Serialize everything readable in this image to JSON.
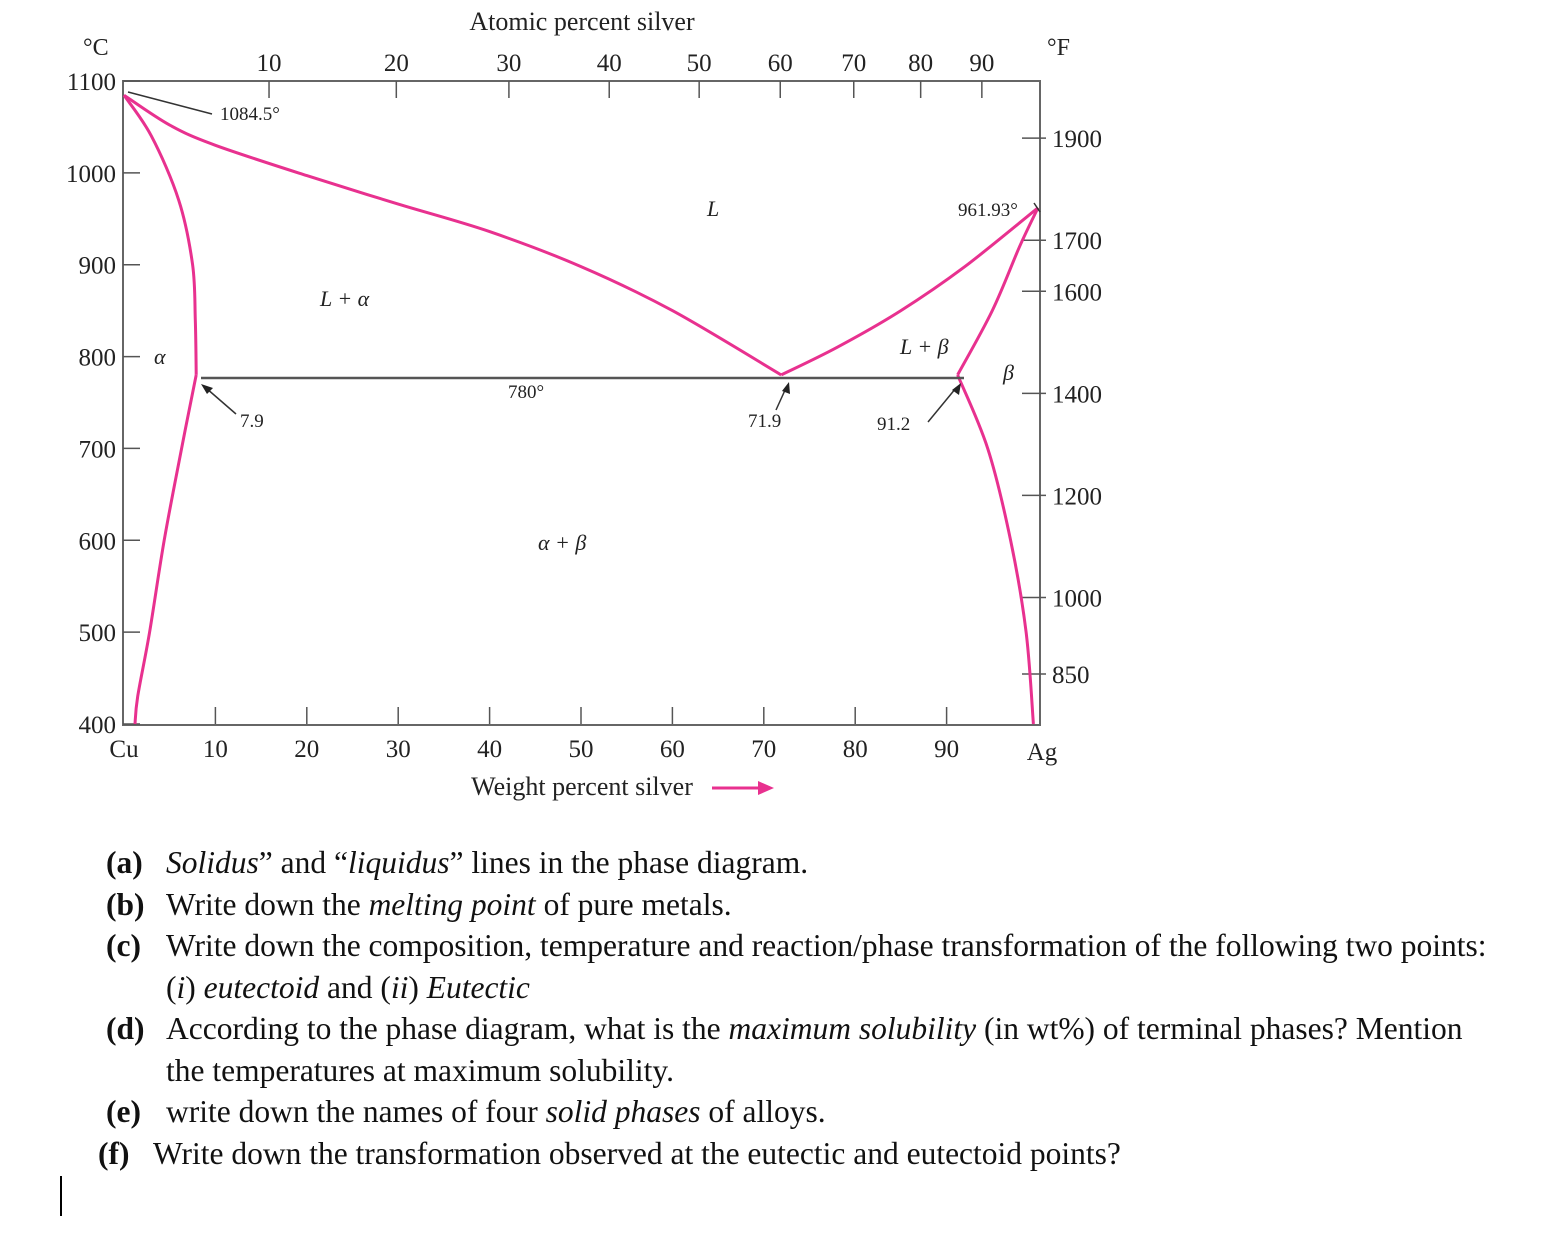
{
  "diagram": {
    "top_axis_title": "Atomic percent silver",
    "bottom_axis_title": "Weight percent silver",
    "left_unit": "°C",
    "right_unit": "°F",
    "left_ticks": [
      "1100",
      "1000",
      "900",
      "800",
      "700",
      "600",
      "500",
      "400"
    ],
    "right_ticks": [
      "1900",
      "1700",
      "1600",
      "1400",
      "1200",
      "1000",
      "850"
    ],
    "top_ticks": [
      "10",
      "20",
      "30",
      "40",
      "50",
      "60",
      "70",
      "80",
      "90"
    ],
    "bottom_ticks": [
      "10",
      "20",
      "30",
      "40",
      "50",
      "60",
      "70",
      "80",
      "90"
    ],
    "bottom_left_label": "Cu",
    "bottom_right_label": "Ag",
    "annotations": {
      "cu_melting": "1084.5°",
      "ag_melting": "961.93°",
      "eutectic_temp": "780°",
      "alpha_limit": "7.9",
      "eutectic_comp": "71.9",
      "beta_limit": "91.2"
    },
    "phases": {
      "liquid": "L",
      "l_alpha": "L + α",
      "l_beta": "L + β",
      "alpha": "α",
      "beta": "β",
      "alpha_beta": "α + β"
    },
    "colors": {
      "phase_boundary": "#e8318f",
      "frame": "#555555",
      "arrow": "#e8318f"
    }
  },
  "chart_data": {
    "type": "phase_diagram",
    "system": "Cu-Ag",
    "x_unit": "Weight percent silver",
    "y_unit": "°C",
    "xlim": [
      0,
      100
    ],
    "ylim": [
      400,
      1100
    ],
    "curves": {
      "liquidus_alpha": [
        [
          0,
          1084.5
        ],
        [
          5,
          1052
        ],
        [
          10,
          1030
        ],
        [
          20,
          997
        ],
        [
          30,
          966
        ],
        [
          40,
          936
        ],
        [
          50,
          898
        ],
        [
          60,
          850
        ],
        [
          71.9,
          780
        ]
      ],
      "liquidus_beta": [
        [
          71.9,
          780
        ],
        [
          78,
          810
        ],
        [
          85,
          850
        ],
        [
          92,
          898
        ],
        [
          100,
          961.93
        ]
      ],
      "solidus_alpha": [
        [
          0,
          1084.5
        ],
        [
          3,
          1040
        ],
        [
          6,
          970
        ],
        [
          7.5,
          900
        ],
        [
          7.8,
          840
        ],
        [
          7.9,
          780
        ]
      ],
      "solvus_alpha": [
        [
          7.9,
          780
        ],
        [
          6.3,
          700
        ],
        [
          4.4,
          600
        ],
        [
          2.8,
          500
        ],
        [
          1.5,
          430
        ],
        [
          1.2,
          400
        ]
      ],
      "solidus_beta": [
        [
          100,
          961.93
        ],
        [
          98,
          920
        ],
        [
          95,
          850
        ],
        [
          91.2,
          780
        ]
      ],
      "solvus_beta": [
        [
          91.2,
          780
        ],
        [
          94.5,
          700
        ],
        [
          97,
          600
        ],
        [
          98.7,
          500
        ],
        [
          99.5,
          400
        ]
      ],
      "eutectic_line": [
        [
          7.9,
          780
        ],
        [
          91.2,
          780
        ]
      ]
    },
    "points": {
      "cu_melting_point": [
        0,
        1084.5
      ],
      "ag_melting_point": [
        100,
        961.93
      ],
      "eutectic": [
        71.9,
        780
      ],
      "alpha_max_solubility": [
        7.9,
        780
      ],
      "beta_max_solubility": [
        91.2,
        780
      ]
    }
  },
  "questions": [
    {
      "label": "(a)",
      "text_html": "<i>Solidus</i>” and “<i>liquidus</i>” lines in the phase diagram."
    },
    {
      "label": "(b)",
      "text_html": "Write down the <i>melting point</i> of pure metals."
    },
    {
      "label": "(c)",
      "text_html": "Write down the composition, temperature and reaction/phase transformation of the following two points:&nbsp; (<i>i</i>) <i>eutectoid</i> and (<i>ii</i>) <i>Eutectic</i>"
    },
    {
      "label": "(d)",
      "text_html": "According to the phase diagram, what is the <i>maximum solubility</i> (in wt%) of terminal phases? Mention the temperatures at maximum solubility."
    },
    {
      "label": "(e)",
      "text_html": "write down the names of four <i>solid phases</i> of alloys."
    },
    {
      "label": "(f)",
      "text_html": "Write down the transformation observed at the eutectic and eutectoid points?"
    }
  ]
}
